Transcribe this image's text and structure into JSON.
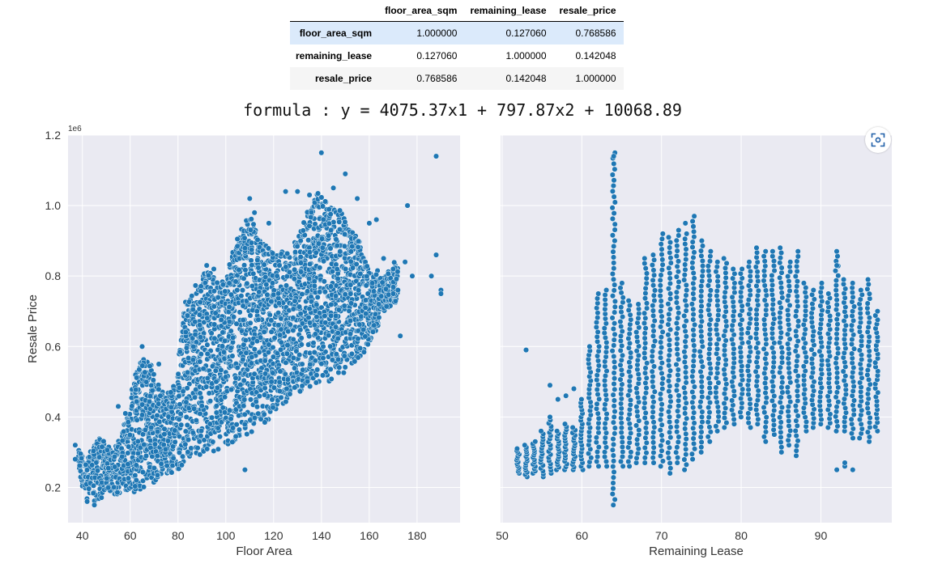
{
  "table": {
    "columns": [
      "floor_area_sqm",
      "remaining_lease",
      "resale_price"
    ],
    "rows": [
      {
        "name": "floor_area_sqm",
        "values": [
          "1.000000",
          "0.127060",
          "0.768586"
        ]
      },
      {
        "name": "remaining_lease",
        "values": [
          "0.127060",
          "1.000000",
          "0.142048"
        ]
      },
      {
        "name": "resale_price",
        "values": [
          "0.768586",
          "0.142048",
          "1.000000"
        ]
      }
    ]
  },
  "formula": "formula : y = 4075.37x1 + 797.87x2 + 10068.89",
  "colors": {
    "point": "#1f77b4",
    "panel": "#eaeaf2",
    "grid": "#ffffff",
    "highlight_row": "#dbeafb"
  },
  "icons": {
    "lens": "lens-icon"
  },
  "chart_data": [
    {
      "type": "scatter",
      "xlabel": "Floor Area",
      "ylabel": "Resale Price",
      "y_offset_label": "1e6",
      "xlim": [
        34,
        198
      ],
      "ylim": [
        0.1,
        1.2
      ],
      "xticks": [
        40,
        60,
        80,
        100,
        120,
        140,
        160,
        180
      ],
      "yticks": [
        0.2,
        0.4,
        0.6,
        0.8,
        1.0,
        1.2
      ],
      "grid": true,
      "density": [
        {
          "x": 38,
          "lo": 0.27,
          "hi": 0.32
        },
        {
          "x": 41,
          "lo": 0.17,
          "hi": 0.27
        },
        {
          "x": 44,
          "lo": 0.16,
          "hi": 0.31
        },
        {
          "x": 47,
          "lo": 0.16,
          "hi": 0.34
        },
        {
          "x": 50,
          "lo": 0.19,
          "hi": 0.33
        },
        {
          "x": 53,
          "lo": 0.18,
          "hi": 0.3
        },
        {
          "x": 56,
          "lo": 0.18,
          "hi": 0.36
        },
        {
          "x": 59,
          "lo": 0.19,
          "hi": 0.4
        },
        {
          "x": 62,
          "lo": 0.18,
          "hi": 0.56
        },
        {
          "x": 65,
          "lo": 0.2,
          "hi": 0.57
        },
        {
          "x": 68,
          "lo": 0.2,
          "hi": 0.58
        },
        {
          "x": 71,
          "lo": 0.22,
          "hi": 0.5
        },
        {
          "x": 74,
          "lo": 0.24,
          "hi": 0.47
        },
        {
          "x": 77,
          "lo": 0.24,
          "hi": 0.48
        },
        {
          "x": 80,
          "lo": 0.25,
          "hi": 0.55
        },
        {
          "x": 83,
          "lo": 0.27,
          "hi": 0.73
        },
        {
          "x": 86,
          "lo": 0.28,
          "hi": 0.77
        },
        {
          "x": 89,
          "lo": 0.29,
          "hi": 0.78
        },
        {
          "x": 92,
          "lo": 0.3,
          "hi": 0.82
        },
        {
          "x": 95,
          "lo": 0.3,
          "hi": 0.8
        },
        {
          "x": 98,
          "lo": 0.31,
          "hi": 0.78
        },
        {
          "x": 101,
          "lo": 0.32,
          "hi": 0.82
        },
        {
          "x": 104,
          "lo": 0.33,
          "hi": 0.9
        },
        {
          "x": 107,
          "lo": 0.34,
          "hi": 0.94
        },
        {
          "x": 110,
          "lo": 0.35,
          "hi": 0.98
        },
        {
          "x": 113,
          "lo": 0.36,
          "hi": 0.92
        },
        {
          "x": 116,
          "lo": 0.38,
          "hi": 0.89
        },
        {
          "x": 119,
          "lo": 0.4,
          "hi": 0.88
        },
        {
          "x": 122,
          "lo": 0.42,
          "hi": 0.88
        },
        {
          "x": 125,
          "lo": 0.44,
          "hi": 0.86
        },
        {
          "x": 128,
          "lo": 0.46,
          "hi": 0.9
        },
        {
          "x": 131,
          "lo": 0.47,
          "hi": 0.92
        },
        {
          "x": 134,
          "lo": 0.48,
          "hi": 0.98
        },
        {
          "x": 137,
          "lo": 0.49,
          "hi": 1.02
        },
        {
          "x": 140,
          "lo": 0.5,
          "hi": 1.05
        },
        {
          "x": 143,
          "lo": 0.5,
          "hi": 0.99
        },
        {
          "x": 146,
          "lo": 0.51,
          "hi": 1.0
        },
        {
          "x": 149,
          "lo": 0.52,
          "hi": 0.98
        },
        {
          "x": 152,
          "lo": 0.54,
          "hi": 0.93
        },
        {
          "x": 155,
          "lo": 0.56,
          "hi": 0.92
        },
        {
          "x": 158,
          "lo": 0.58,
          "hi": 0.85
        },
        {
          "x": 161,
          "lo": 0.62,
          "hi": 0.8
        },
        {
          "x": 164,
          "lo": 0.66,
          "hi": 0.82
        },
        {
          "x": 167,
          "lo": 0.7,
          "hi": 0.8
        },
        {
          "x": 170,
          "lo": 0.72,
          "hi": 0.84
        }
      ],
      "points": [
        [
          140,
          1.15
        ],
        [
          130,
          1.04
        ],
        [
          125,
          1.04
        ],
        [
          135,
          1.03
        ],
        [
          145,
          1.05
        ],
        [
          150,
          1.09
        ],
        [
          155,
          1.02
        ],
        [
          110,
          1.02
        ],
        [
          118,
          0.95
        ],
        [
          112,
          0.98
        ],
        [
          160,
          0.95
        ],
        [
          163,
          0.96
        ],
        [
          166,
          0.85
        ],
        [
          170,
          0.82
        ],
        [
          172,
          0.76
        ],
        [
          176,
          1.0
        ],
        [
          175,
          0.84
        ],
        [
          173,
          0.63
        ],
        [
          188,
          1.14
        ],
        [
          188,
          0.86
        ],
        [
          186,
          0.8
        ],
        [
          190,
          0.76
        ],
        [
          190,
          0.75
        ],
        [
          178,
          0.8
        ],
        [
          108,
          0.25
        ],
        [
          77,
          0.47
        ],
        [
          72,
          0.55
        ],
        [
          65,
          0.6
        ],
        [
          92,
          0.83
        ],
        [
          95,
          0.82
        ],
        [
          55,
          0.43
        ],
        [
          58,
          0.41
        ],
        [
          45,
          0.15
        ],
        [
          42,
          0.16
        ],
        [
          37,
          0.32
        ],
        [
          37,
          0.28
        ],
        [
          162,
          0.66
        ],
        [
          164,
          0.72
        ]
      ]
    },
    {
      "type": "scatter",
      "xlabel": "Remaining Lease",
      "ylabel": "",
      "xlim": [
        49.8,
        98.9
      ],
      "ylim": [
        0.1,
        1.2
      ],
      "xticks": [
        50,
        60,
        70,
        80,
        90
      ],
      "yticks": [
        0.2,
        0.4,
        0.6,
        0.8,
        1.0,
        1.2
      ],
      "grid": true,
      "columns": [
        {
          "x": 52,
          "lo": 0.24,
          "hi": 0.31
        },
        {
          "x": 53,
          "lo": 0.23,
          "hi": 0.32
        },
        {
          "x": 54,
          "lo": 0.24,
          "hi": 0.33
        },
        {
          "x": 55,
          "lo": 0.23,
          "hi": 0.36
        },
        {
          "x": 56,
          "lo": 0.24,
          "hi": 0.4
        },
        {
          "x": 57,
          "lo": 0.25,
          "hi": 0.36
        },
        {
          "x": 58,
          "lo": 0.25,
          "hi": 0.38
        },
        {
          "x": 59,
          "lo": 0.25,
          "hi": 0.37
        },
        {
          "x": 60,
          "lo": 0.25,
          "hi": 0.45
        },
        {
          "x": 61,
          "lo": 0.26,
          "hi": 0.6
        },
        {
          "x": 62,
          "lo": 0.26,
          "hi": 0.75
        },
        {
          "x": 63,
          "lo": 0.26,
          "hi": 0.76
        },
        {
          "x": 64,
          "lo": 0.15,
          "hi": 1.15
        },
        {
          "x": 65,
          "lo": 0.26,
          "hi": 0.78
        },
        {
          "x": 66,
          "lo": 0.26,
          "hi": 0.73
        },
        {
          "x": 67,
          "lo": 0.27,
          "hi": 0.72
        },
        {
          "x": 68,
          "lo": 0.27,
          "hi": 0.85
        },
        {
          "x": 69,
          "lo": 0.27,
          "hi": 0.86
        },
        {
          "x": 70,
          "lo": 0.26,
          "hi": 0.92
        },
        {
          "x": 71,
          "lo": 0.24,
          "hi": 0.91
        },
        {
          "x": 72,
          "lo": 0.27,
          "hi": 0.93
        },
        {
          "x": 73,
          "lo": 0.25,
          "hi": 0.92
        },
        {
          "x": 74,
          "lo": 0.28,
          "hi": 0.97
        },
        {
          "x": 75,
          "lo": 0.3,
          "hi": 0.9
        },
        {
          "x": 76,
          "lo": 0.33,
          "hi": 0.87
        },
        {
          "x": 77,
          "lo": 0.36,
          "hi": 0.84
        },
        {
          "x": 78,
          "lo": 0.37,
          "hi": 0.85
        },
        {
          "x": 79,
          "lo": 0.38,
          "hi": 0.82
        },
        {
          "x": 80,
          "lo": 0.4,
          "hi": 0.82
        },
        {
          "x": 81,
          "lo": 0.37,
          "hi": 0.84
        },
        {
          "x": 82,
          "lo": 0.38,
          "hi": 0.88
        },
        {
          "x": 83,
          "lo": 0.33,
          "hi": 0.87
        },
        {
          "x": 84,
          "lo": 0.35,
          "hi": 0.87
        },
        {
          "x": 85,
          "lo": 0.3,
          "hi": 0.88
        },
        {
          "x": 86,
          "lo": 0.32,
          "hi": 0.84
        },
        {
          "x": 87,
          "lo": 0.29,
          "hi": 0.87
        },
        {
          "x": 88,
          "lo": 0.36,
          "hi": 0.78
        },
        {
          "x": 89,
          "lo": 0.37,
          "hi": 0.76
        },
        {
          "x": 90,
          "lo": 0.38,
          "hi": 0.78
        },
        {
          "x": 91,
          "lo": 0.37,
          "hi": 0.75
        },
        {
          "x": 92,
          "lo": 0.36,
          "hi": 0.87
        },
        {
          "x": 93,
          "lo": 0.36,
          "hi": 0.79
        },
        {
          "x": 94,
          "lo": 0.34,
          "hi": 0.78
        },
        {
          "x": 95,
          "lo": 0.34,
          "hi": 0.76
        },
        {
          "x": 96,
          "lo": 0.33,
          "hi": 0.79
        },
        {
          "x": 97,
          "lo": 0.36,
          "hi": 0.7
        }
      ],
      "points": [
        [
          53,
          0.59
        ],
        [
          56,
          0.49
        ],
        [
          57,
          0.45
        ],
        [
          58,
          0.46
        ],
        [
          59,
          0.48
        ],
        [
          64,
          1.14
        ],
        [
          93,
          0.26
        ],
        [
          93,
          0.27
        ],
        [
          94,
          0.25
        ],
        [
          92,
          0.25
        ],
        [
          92,
          0.83
        ],
        [
          73,
          0.95
        ]
      ]
    }
  ]
}
